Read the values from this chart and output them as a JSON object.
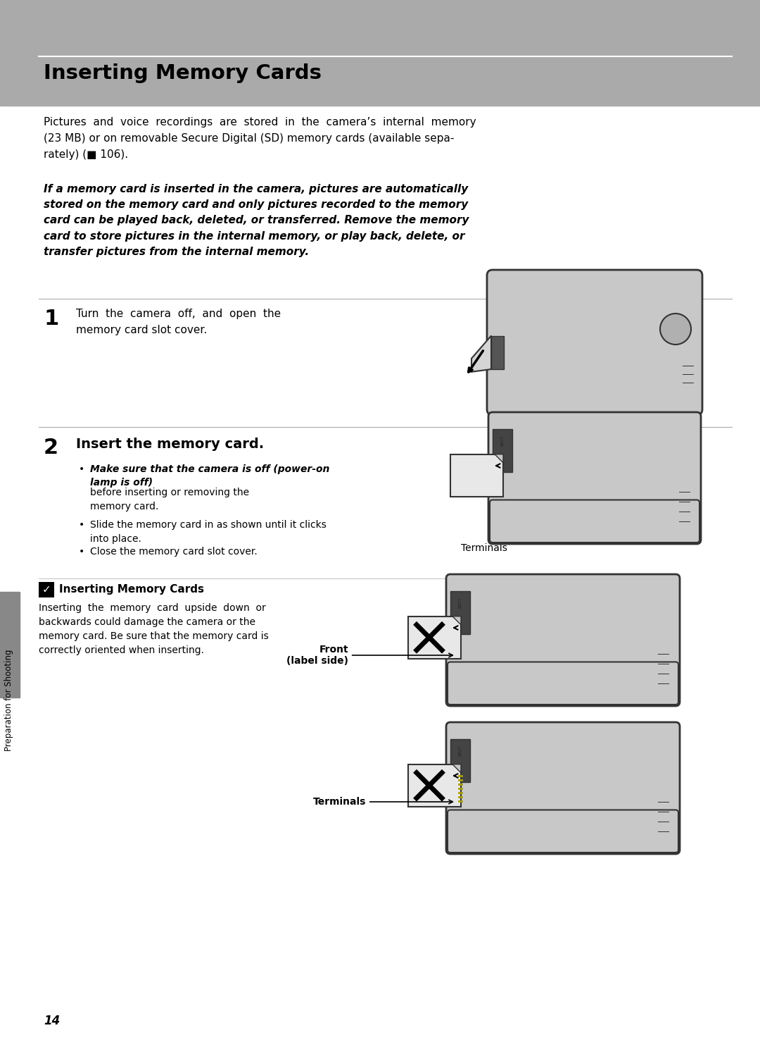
{
  "header_color": "#aaaaaa",
  "page_bg": "#ffffff",
  "title": "Inserting Memory Cards",
  "sidebar_color": "#888888",
  "sidebar_text": "Preparation for Shooting",
  "page_number": "14",
  "cam_body_color": "#c8c8c8",
  "cam_outline_color": "#333333",
  "card_color": "#e8e8e8",
  "card_outline": "#444444",
  "sep_color": "#aaaaaa",
  "note_border_color": "#cccccc"
}
